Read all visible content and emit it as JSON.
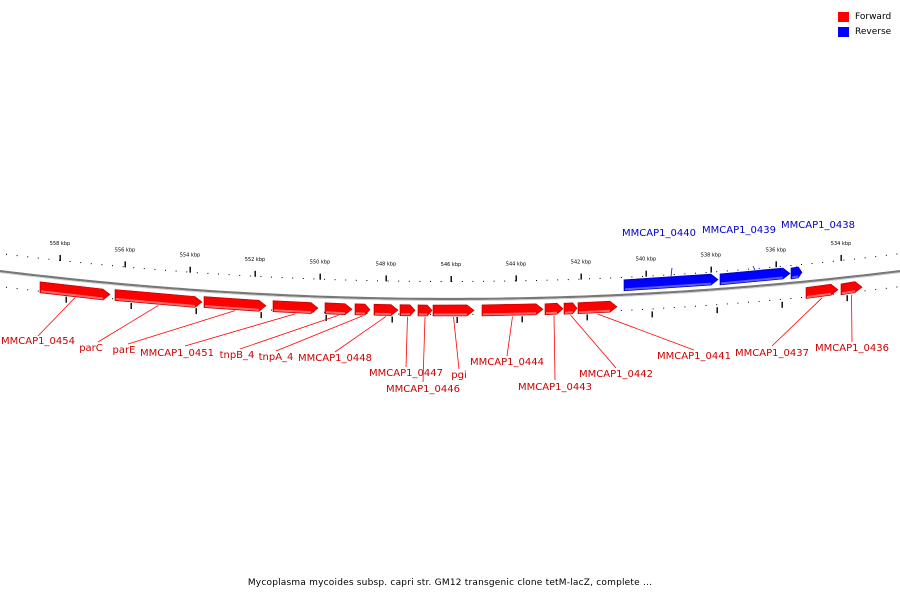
{
  "colors": {
    "forward": "#ff0000",
    "reverse": "#0000ff",
    "forward_text": "#cc0000",
    "reverse_text": "#0000cc",
    "backbone": "#888888"
  },
  "legend": [
    {
      "label": "Forward",
      "color": "#ff0000"
    },
    {
      "label": "Reverse",
      "color": "#0000ff"
    }
  ],
  "caption": "Mycoplasma mycoides subsp. capri str. GM12 transgenic clone tetM-lacZ, complete ...",
  "scale_labels": [
    "558 kbp",
    "556 kbp",
    "554 kbp",
    "552 kbp",
    "550 kbp",
    "548 kbp",
    "546 kbp",
    "544 kbp",
    "542 kbp",
    "540 kbp",
    "538 kbp",
    "536 kbp",
    "534 kbp"
  ],
  "genes": [
    {
      "name": "MMCAP1_0454",
      "strand": "forward"
    },
    {
      "name": "parC",
      "strand": "forward"
    },
    {
      "name": "parE",
      "strand": "forward"
    },
    {
      "name": "MMCAP1_0451",
      "strand": "forward"
    },
    {
      "name": "tnpB_4",
      "strand": "forward"
    },
    {
      "name": "tnpA_4",
      "strand": "forward"
    },
    {
      "name": "MMCAP1_0448",
      "strand": "forward"
    },
    {
      "name": "MMCAP1_0447",
      "strand": "forward"
    },
    {
      "name": "MMCAP1_0446",
      "strand": "forward"
    },
    {
      "name": "pgi",
      "strand": "forward"
    },
    {
      "name": "MMCAP1_0444",
      "strand": "forward"
    },
    {
      "name": "MMCAP1_0443",
      "strand": "forward"
    },
    {
      "name": "MMCAP1_0442",
      "strand": "forward"
    },
    {
      "name": "MMCAP1_0441",
      "strand": "forward"
    },
    {
      "name": "MMCAP1_0440",
      "strand": "reverse"
    },
    {
      "name": "MMCAP1_0439",
      "strand": "reverse"
    },
    {
      "name": "MMCAP1_0438",
      "strand": "reverse"
    },
    {
      "name": "MMCAP1_0437",
      "strand": "forward"
    },
    {
      "name": "MMCAP1_0436",
      "strand": "forward"
    }
  ]
}
